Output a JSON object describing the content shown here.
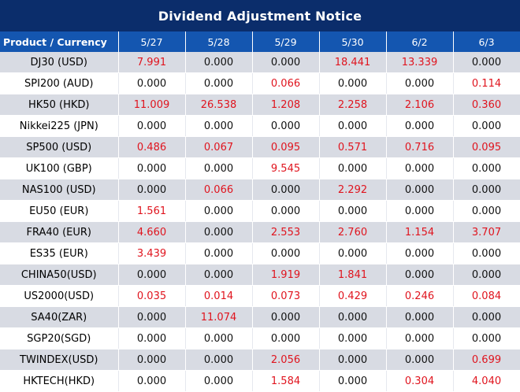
{
  "title": "Dividend Adjustment Notice",
  "header": {
    "product_label": "Product / Currency",
    "dates": [
      "5/27",
      "5/28",
      "5/29",
      "5/30",
      "6/2",
      "6/3"
    ]
  },
  "rows": [
    {
      "product": "DJ30 (USD)",
      "values": [
        "7.991",
        "0.000",
        "0.000",
        "18.441",
        "13.339",
        "0.000"
      ]
    },
    {
      "product": "SPI200 (AUD)",
      "values": [
        "0.000",
        "0.000",
        "0.066",
        "0.000",
        "0.000",
        "0.114"
      ]
    },
    {
      "product": "HK50 (HKD)",
      "values": [
        "11.009",
        "26.538",
        "1.208",
        "2.258",
        "2.106",
        "0.360"
      ]
    },
    {
      "product": "Nikkei225 (JPN)",
      "values": [
        "0.000",
        "0.000",
        "0.000",
        "0.000",
        "0.000",
        "0.000"
      ]
    },
    {
      "product": "SP500 (USD)",
      "values": [
        "0.486",
        "0.067",
        "0.095",
        "0.571",
        "0.716",
        "0.095"
      ]
    },
    {
      "product": "UK100 (GBP)",
      "values": [
        "0.000",
        "0.000",
        "9.545",
        "0.000",
        "0.000",
        "0.000"
      ]
    },
    {
      "product": "NAS100 (USD)",
      "values": [
        "0.000",
        "0.066",
        "0.000",
        "2.292",
        "0.000",
        "0.000"
      ]
    },
    {
      "product": "EU50 (EUR)",
      "values": [
        "1.561",
        "0.000",
        "0.000",
        "0.000",
        "0.000",
        "0.000"
      ]
    },
    {
      "product": "FRA40 (EUR)",
      "values": [
        "4.660",
        "0.000",
        "2.553",
        "2.760",
        "1.154",
        "3.707"
      ]
    },
    {
      "product": "ES35 (EUR)",
      "values": [
        "3.439",
        "0.000",
        "0.000",
        "0.000",
        "0.000",
        "0.000"
      ]
    },
    {
      "product": "CHINA50(USD)",
      "values": [
        "0.000",
        "0.000",
        "1.919",
        "1.841",
        "0.000",
        "0.000"
      ]
    },
    {
      "product": "US2000(USD)",
      "values": [
        "0.035",
        "0.014",
        "0.073",
        "0.429",
        "0.246",
        "0.084"
      ]
    },
    {
      "product": "SA40(ZAR)",
      "values": [
        "0.000",
        "11.074",
        "0.000",
        "0.000",
        "0.000",
        "0.000"
      ]
    },
    {
      "product": "SGP20(SGD)",
      "values": [
        "0.000",
        "0.000",
        "0.000",
        "0.000",
        "0.000",
        "0.000"
      ]
    },
    {
      "product": "TWINDEX(USD)",
      "values": [
        "0.000",
        "0.000",
        "2.056",
        "0.000",
        "0.000",
        "0.699"
      ]
    },
    {
      "product": "HKTECH(HKD)",
      "values": [
        "0.000",
        "0.000",
        "1.584",
        "0.000",
        "0.304",
        "4.040"
      ]
    }
  ],
  "colors": {
    "title_bg": "#0b2d6b",
    "header_bg": "#1456b0",
    "shaded_row": "#d8dbe3",
    "positive_value": "#e0141e",
    "zero_value": "#111111"
  }
}
